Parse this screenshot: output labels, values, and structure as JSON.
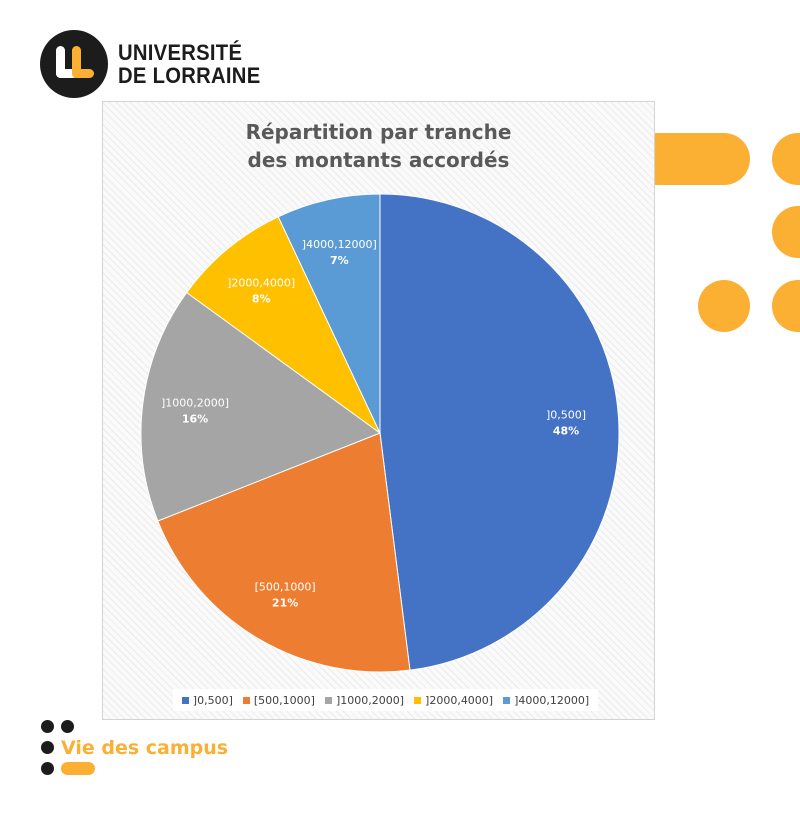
{
  "logo": {
    "line1": "UNIVERSITÉ",
    "line2": "DE LORRAINE"
  },
  "footer": {
    "text": "Vie des campus"
  },
  "colors": {
    "accent": "#fbb034",
    "dark": "#1c1c1c"
  },
  "chart_data": {
    "type": "pie",
    "title_lines": [
      "Répartition par tranche",
      "des montants accordés"
    ],
    "slices": [
      {
        "label": "]0,500]",
        "value": 48,
        "percent_label": "48%",
        "color": "#4472c4"
      },
      {
        "label": "[500,1000]",
        "value": 21,
        "percent_label": "21%",
        "color": "#ed7d31"
      },
      {
        "label": "]1000,2000]",
        "value": 16,
        "percent_label": "16%",
        "color": "#a5a5a5"
      },
      {
        "label": "]2000,4000]",
        "value": 8,
        "percent_label": "8%",
        "color": "#ffc000"
      },
      {
        "label": "]4000,12000]",
        "value": 7,
        "percent_label": "7%",
        "color": "#5b9bd5"
      }
    ],
    "legend": [
      {
        "label": "]0,500]",
        "color": "#4472c4"
      },
      {
        "label": "[500,1000]",
        "color": "#ed7d31"
      },
      {
        "label": "]1000,2000]",
        "color": "#a5a5a5"
      },
      {
        "label": "]2000,4000]",
        "color": "#ffc000"
      },
      {
        "label": "]4000,12000]",
        "color": "#5b9bd5"
      }
    ],
    "legend_position": "bottom"
  }
}
